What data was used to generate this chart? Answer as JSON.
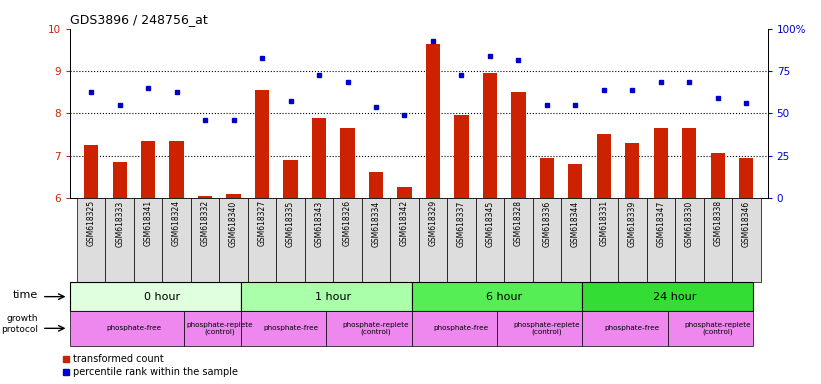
{
  "title": "GDS3896 / 248756_at",
  "samples": [
    "GSM618325",
    "GSM618333",
    "GSM618341",
    "GSM618324",
    "GSM618332",
    "GSM618340",
    "GSM618327",
    "GSM618335",
    "GSM618343",
    "GSM618326",
    "GSM618334",
    "GSM618342",
    "GSM618329",
    "GSM618337",
    "GSM618345",
    "GSM618328",
    "GSM618336",
    "GSM618344",
    "GSM618331",
    "GSM618339",
    "GSM618347",
    "GSM618330",
    "GSM618338",
    "GSM618346"
  ],
  "red_values": [
    7.25,
    6.85,
    7.35,
    7.35,
    6.05,
    6.1,
    8.55,
    6.9,
    7.9,
    7.65,
    6.6,
    6.25,
    9.65,
    7.95,
    8.95,
    8.5,
    6.95,
    6.8,
    7.5,
    7.3,
    7.65,
    7.65,
    7.05,
    6.95
  ],
  "blue_values": [
    8.5,
    8.2,
    8.6,
    8.5,
    7.85,
    7.85,
    9.3,
    8.3,
    8.9,
    8.75,
    8.15,
    7.95,
    9.7,
    8.9,
    9.35,
    9.25,
    8.2,
    8.2,
    8.55,
    8.55,
    8.75,
    8.75,
    8.35,
    8.25
  ],
  "ylim": [
    6,
    10
  ],
  "yticks_red": [
    6,
    7,
    8,
    9,
    10
  ],
  "yticks_blue": [
    0,
    25,
    50,
    75,
    100
  ],
  "dotted_lines_red": [
    7,
    8,
    9
  ],
  "time_groups": [
    {
      "label": "0 hour",
      "start": 0,
      "end": 6,
      "color": "#dfffdf"
    },
    {
      "label": "1 hour",
      "start": 6,
      "end": 12,
      "color": "#aaffaa"
    },
    {
      "label": "6 hour",
      "start": 12,
      "end": 18,
      "color": "#55ee55"
    },
    {
      "label": "24 hour",
      "start": 18,
      "end": 24,
      "color": "#33dd33"
    }
  ],
  "protocol_groups": [
    {
      "label": "phosphate-free",
      "start": 0,
      "end": 4
    },
    {
      "label": "phosphate-replete\n(control)",
      "start": 4,
      "end": 6
    },
    {
      "label": "phosphate-free",
      "start": 6,
      "end": 9
    },
    {
      "label": "phosphate-replete\n(control)",
      "start": 9,
      "end": 12
    },
    {
      "label": "phosphate-free",
      "start": 12,
      "end": 15
    },
    {
      "label": "phosphate-replete\n(control)",
      "start": 15,
      "end": 18
    },
    {
      "label": "phosphate-free",
      "start": 18,
      "end": 21
    },
    {
      "label": "phosphate-replete\n(control)",
      "start": 21,
      "end": 24
    }
  ],
  "protocol_color": "#ee88ee",
  "bar_color": "#cc2200",
  "dot_color": "#0000cc",
  "sample_bg_color": "#dddddd",
  "baseline": 6.0,
  "bar_width": 0.5
}
